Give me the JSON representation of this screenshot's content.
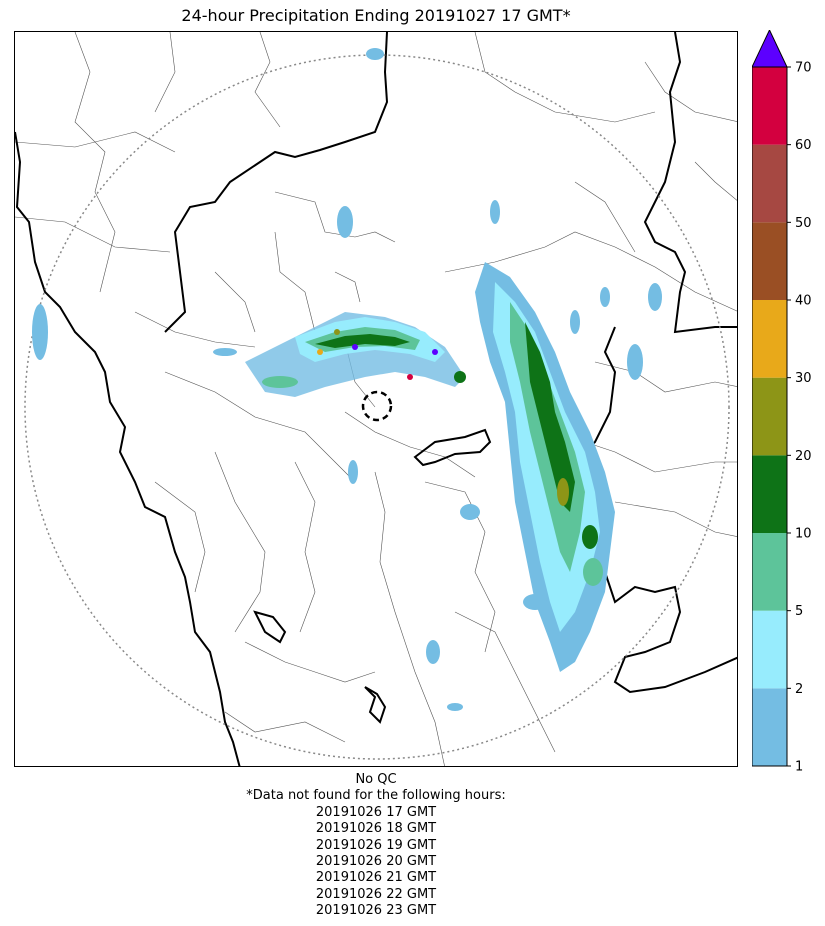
{
  "title": "24-hour Precipitation Ending 20191027 17 GMT*",
  "colorbar": {
    "ticks": [
      "1",
      "2",
      "5",
      "10",
      "20",
      "30",
      "40",
      "50",
      "60",
      "70"
    ],
    "colors": [
      "#74bde3",
      "#97ecfd",
      "#5dc49a",
      "#0e7317",
      "#8d9517",
      "#e8a91a",
      "#9a4f24",
      "#a64842",
      "#d3003f"
    ],
    "extend_max_color": "#5c00ff"
  },
  "notes": {
    "qc": "No QC",
    "missing_header": "*Data not found for the following hours:",
    "missing_hours": [
      "20191026 17 GMT",
      "20191026 18 GMT",
      "20191026 19 GMT",
      "20191026 20 GMT",
      "20191026 21 GMT",
      "20191026 22 GMT",
      "20191026 23 GMT"
    ]
  },
  "map": {
    "colors": {
      "boundary_major": "#000000",
      "boundary_minor": "#555555",
      "range_ring": "#888888"
    }
  }
}
